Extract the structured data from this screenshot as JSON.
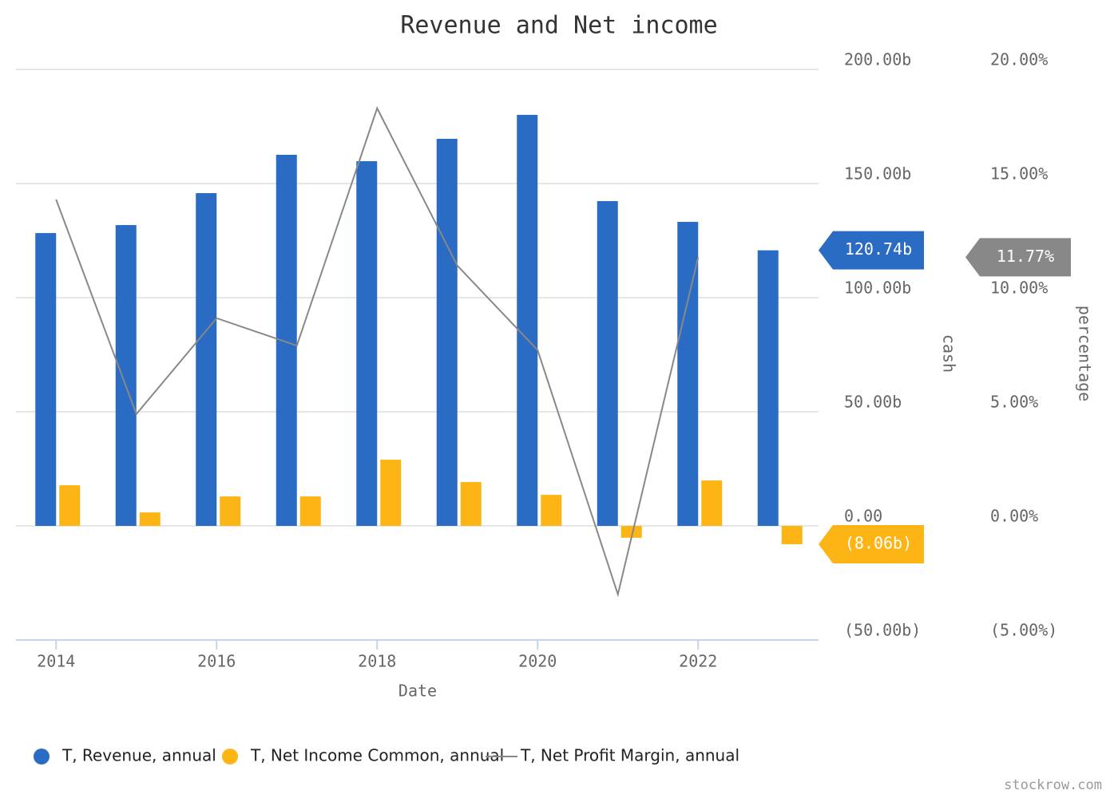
{
  "chart_data": {
    "type": "bar",
    "title": "Revenue and Net income",
    "x_label": "Date",
    "y_label": "cash",
    "y2_label": "percentage",
    "x": [
      2014,
      2015,
      2016,
      2017,
      2018,
      2019,
      2020,
      2021,
      2022,
      2023
    ],
    "xlim": [
      2013.5,
      2023.5
    ],
    "xticks": [
      2014,
      2016,
      2018,
      2020,
      2022
    ],
    "ylim": [
      -50,
      200
    ],
    "yticks": [
      {
        "value": -50,
        "label": "(50.00b)"
      },
      {
        "value": 0,
        "label": "0.00"
      },
      {
        "value": 50,
        "label": "50.00b"
      },
      {
        "value": 100,
        "label": "100.00b"
      },
      {
        "value": 150,
        "label": "150.00b"
      },
      {
        "value": 200,
        "label": "200.00b"
      }
    ],
    "y2lim": [
      -5,
      20
    ],
    "y2ticks": [
      {
        "value": -5,
        "label": "(5.00%)"
      },
      {
        "value": 0,
        "label": "0.00%"
      },
      {
        "value": 5,
        "label": "5.00%"
      },
      {
        "value": 10,
        "label": "10.00%"
      },
      {
        "value": 15,
        "label": "15.00%"
      },
      {
        "value": 20,
        "label": "20.00%"
      }
    ],
    "grid": true,
    "series": [
      {
        "name": "T, Revenue, annual",
        "type": "bar",
        "color": "#2a6bc4",
        "values": [
          128.3,
          131.8,
          145.8,
          162.6,
          159.8,
          169.6,
          180.1,
          142.3,
          133.2,
          120.74
        ],
        "value_labels": [
          null,
          null,
          null,
          null,
          null,
          null,
          null,
          null,
          null,
          "120.74b"
        ]
      },
      {
        "name": "T, Net Income Common, annual",
        "type": "bar",
        "color": "#fdb515",
        "values": [
          17.8,
          5.9,
          12.9,
          12.9,
          29.0,
          19.2,
          13.6,
          -5.2,
          19.9,
          -8.06
        ],
        "value_labels": [
          null,
          null,
          null,
          null,
          null,
          null,
          null,
          null,
          null,
          "(8.06b)"
        ]
      },
      {
        "name": "T, Net Profit Margin, annual",
        "type": "line",
        "axis": "y2",
        "color": "#888888",
        "values": [
          14.3,
          4.9,
          9.1,
          7.9,
          18.3,
          11.4,
          7.7,
          -3.0,
          11.77,
          null
        ],
        "value_labels": [
          null,
          null,
          null,
          null,
          null,
          null,
          null,
          null,
          "11.77%",
          null
        ]
      }
    ],
    "watermark": "stockrow.com"
  }
}
